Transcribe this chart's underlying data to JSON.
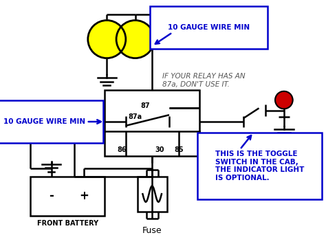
{
  "bg_color": "#ffffff",
  "light_color": "#ffff00",
  "indicator_color": "#cc0000",
  "wire_color": "#000000",
  "label_color": "#000000",
  "blue_color": "#0000cc",
  "text_10gauge_top": "10 GAUGE WIRE MIN",
  "text_10gauge_left": "10 GAUGE WIRE MIN",
  "text_relay_note": "IF YOUR RELAY HAS AN\n87a, DON'T USE IT.",
  "text_toggle": "THIS IS THE TOGGLE\nSWITCH IN THE CAB,\nTHE INDICATOR LIGHT\nIS OPTIONAL.",
  "text_battery": "FRONT BATTERY",
  "text_fuse": "Fuse",
  "text_minus": "-",
  "text_plus": "+"
}
